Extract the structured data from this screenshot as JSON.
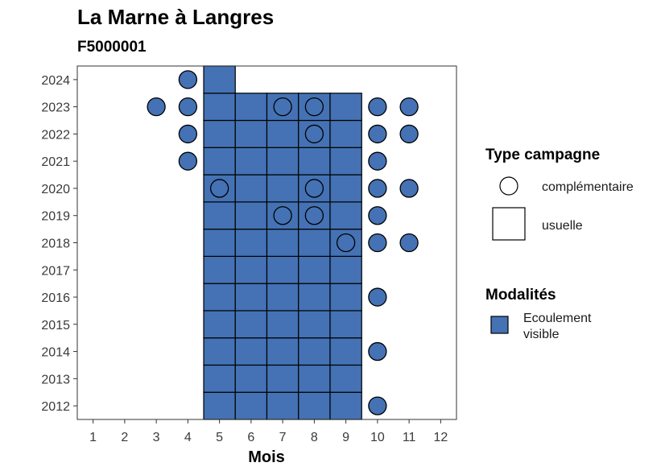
{
  "chart_data": {
    "type": "tile-scatter",
    "title": "La Marne à Langres",
    "subtitle": "F5000001",
    "xlabel": "Mois",
    "ylabel": "",
    "x_ticks": [
      1,
      2,
      3,
      4,
      5,
      6,
      7,
      8,
      9,
      10,
      11,
      12
    ],
    "y_ticks": [
      2012,
      2013,
      2014,
      2015,
      2016,
      2017,
      2018,
      2019,
      2020,
      2021,
      2022,
      2023,
      2024
    ],
    "xlim": [
      0.5,
      12.5
    ],
    "ylim": [
      2011.5,
      2024.5
    ],
    "grid": false,
    "fill_color": "#4472B4",
    "usuelle_tiles": [
      {
        "year": 2012,
        "months": [
          5,
          6,
          7,
          8,
          9
        ]
      },
      {
        "year": 2013,
        "months": [
          5,
          6,
          7,
          8,
          9
        ]
      },
      {
        "year": 2014,
        "months": [
          5,
          6,
          7,
          8,
          9
        ]
      },
      {
        "year": 2015,
        "months": [
          5,
          6,
          7,
          8,
          9
        ]
      },
      {
        "year": 2016,
        "months": [
          5,
          6,
          7,
          8,
          9
        ]
      },
      {
        "year": 2017,
        "months": [
          5,
          6,
          7,
          8,
          9
        ]
      },
      {
        "year": 2018,
        "months": [
          5,
          6,
          7,
          8,
          9
        ]
      },
      {
        "year": 2019,
        "months": [
          5,
          6,
          7,
          8,
          9
        ]
      },
      {
        "year": 2020,
        "months": [
          5,
          6,
          7,
          8,
          9
        ]
      },
      {
        "year": 2021,
        "months": [
          5,
          6,
          7,
          8,
          9
        ]
      },
      {
        "year": 2022,
        "months": [
          5,
          6,
          7,
          8,
          9
        ]
      },
      {
        "year": 2023,
        "months": [
          5,
          6,
          7,
          8,
          9
        ]
      },
      {
        "year": 2024,
        "months": [
          5
        ]
      }
    ],
    "complementaire_points": [
      {
        "year": 2012,
        "months": [
          10
        ]
      },
      {
        "year": 2014,
        "months": [
          10
        ]
      },
      {
        "year": 2016,
        "months": [
          10
        ]
      },
      {
        "year": 2018,
        "months": [
          9,
          10,
          11
        ]
      },
      {
        "year": 2019,
        "months": [
          7,
          8,
          10
        ]
      },
      {
        "year": 2020,
        "months": [
          5,
          8,
          10,
          11
        ]
      },
      {
        "year": 2021,
        "months": [
          4,
          10
        ]
      },
      {
        "year": 2022,
        "months": [
          4,
          8,
          10,
          11
        ]
      },
      {
        "year": 2023,
        "months": [
          3,
          4,
          7,
          8,
          10,
          11
        ]
      },
      {
        "year": 2024,
        "months": [
          4
        ]
      }
    ],
    "filled_points_note": "circles outside the tile columns are filled blue; circles over tiles are outline-only",
    "legend": {
      "position": "right",
      "type_title": "Type campagne",
      "type_items": [
        "complémentaire",
        "usuelle"
      ],
      "mod_title": "Modalités",
      "mod_items": [
        "Ecoulement visible"
      ]
    }
  }
}
